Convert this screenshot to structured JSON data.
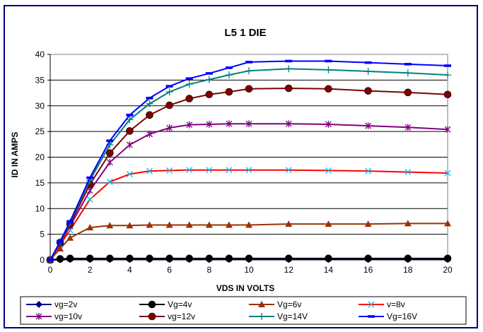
{
  "chart_data": {
    "type": "line",
    "title": "L5 1 DIE",
    "xlabel": "VDS IN VOLTS",
    "ylabel": "ID IN AMPS",
    "xlim": [
      0,
      20
    ],
    "ylim": [
      0,
      40
    ],
    "x": [
      0,
      0.5,
      1,
      2,
      3,
      4,
      5,
      6,
      7,
      8,
      9,
      10,
      12,
      14,
      16,
      18,
      20
    ],
    "x_ticks": [
      "0",
      "2",
      "4",
      "6",
      "8",
      "10",
      "12",
      "14",
      "16",
      "18",
      "20"
    ],
    "y_ticks": [
      "0",
      "5",
      "10",
      "15",
      "20",
      "25",
      "30",
      "35",
      "40"
    ],
    "grid": true,
    "legend_position": "bottom",
    "series": [
      {
        "name": "vg=2v",
        "color": "#000080",
        "marker": "diamond",
        "values": [
          0,
          0.05,
          0.1,
          0.1,
          0.1,
          0.1,
          0.1,
          0.1,
          0.1,
          0.1,
          0.1,
          0.1,
          0.1,
          0.1,
          0.1,
          0.1,
          0.1
        ]
      },
      {
        "name": "Vg=4v",
        "color": "#000000",
        "marker": "circle",
        "values": [
          0,
          0.2,
          0.3,
          0.3,
          0.3,
          0.3,
          0.3,
          0.3,
          0.3,
          0.3,
          0.3,
          0.3,
          0.3,
          0.3,
          0.3,
          0.3,
          0.3
        ]
      },
      {
        "name": "Vg=6v",
        "color": "#993300",
        "marker": "triangle",
        "values": [
          0,
          2.2,
          4.3,
          6.3,
          6.7,
          6.7,
          6.8,
          6.8,
          6.8,
          6.8,
          6.8,
          6.8,
          7.0,
          7.0,
          7.0,
          7.1,
          7.1
        ]
      },
      {
        "name": "v=8v",
        "color": "#ff0000",
        "marker": "x",
        "values": [
          0,
          3.0,
          5.8,
          11.8,
          15.2,
          16.7,
          17.3,
          17.4,
          17.5,
          17.5,
          17.5,
          17.5,
          17.5,
          17.4,
          17.3,
          17.1,
          16.9
        ]
      },
      {
        "name": "vg=10v",
        "color": "#800080",
        "marker": "star",
        "values": [
          0,
          3.3,
          6.6,
          13.5,
          19.0,
          22.4,
          24.5,
          25.7,
          26.3,
          26.4,
          26.5,
          26.5,
          26.5,
          26.4,
          26.1,
          25.8,
          25.4
        ]
      },
      {
        "name": "vg=12v",
        "color": "#800000",
        "marker": "circle",
        "values": [
          0,
          3.4,
          7.0,
          14.7,
          20.8,
          25.1,
          28.2,
          30.1,
          31.4,
          32.2,
          32.7,
          33.3,
          33.4,
          33.3,
          32.9,
          32.6,
          32.2
        ]
      },
      {
        "name": "Vg=14V",
        "color": "#008080",
        "marker": "plus",
        "values": [
          0,
          3.5,
          7.3,
          15.5,
          22.4,
          27.3,
          30.4,
          32.7,
          34.2,
          35.1,
          36.0,
          36.8,
          37.2,
          37.0,
          36.7,
          36.4,
          36.0
        ]
      },
      {
        "name": "Vg=16V",
        "color": "#0000ff",
        "marker": "dash",
        "values": [
          0,
          3.6,
          7.5,
          16.0,
          23.2,
          28.2,
          31.5,
          33.8,
          35.3,
          36.3,
          37.4,
          38.5,
          38.7,
          38.7,
          38.4,
          38.1,
          37.8
        ]
      }
    ]
  }
}
